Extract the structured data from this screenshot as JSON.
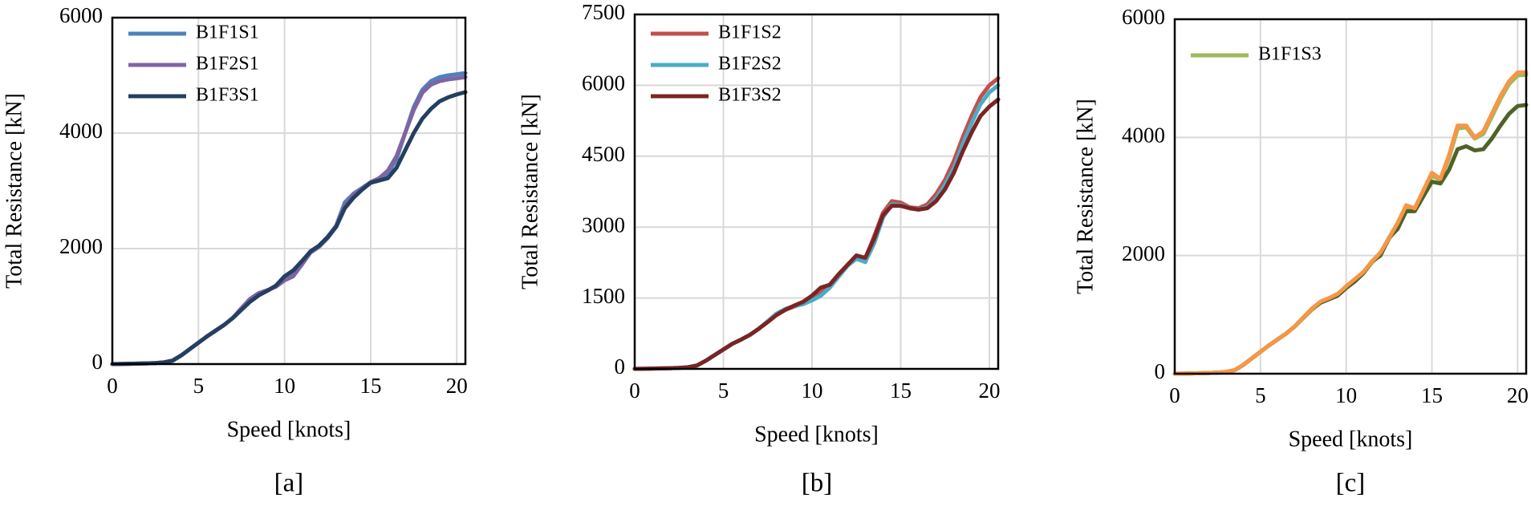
{
  "chart_data": [
    {
      "type": "line",
      "caption": "[a]",
      "x_label": "Speed [knots]",
      "y_label": "Total Resistance [kN]",
      "x": [
        0,
        0.5,
        1,
        1.5,
        2,
        2.5,
        3,
        3.5,
        4,
        4.5,
        5,
        5.5,
        6,
        6.5,
        7,
        7.5,
        8,
        8.5,
        9,
        9.5,
        10,
        10.5,
        11,
        11.5,
        12,
        12.5,
        13,
        13.5,
        14,
        14.5,
        15,
        15.5,
        16,
        16.5,
        17,
        17.5,
        18,
        18.5,
        19,
        19.5,
        20,
        20.5
      ],
      "xlim": [
        0,
        20.5
      ],
      "xticks": [
        0,
        5,
        10,
        15,
        20
      ],
      "ylim": [
        0,
        6000
      ],
      "yticks": [
        0,
        2000,
        4000,
        6000
      ],
      "grid": true,
      "legend": "upper left",
      "series": [
        {
          "name": "B1F1S1",
          "color": "#4f81bd",
          "values": [
            0,
            2,
            5,
            8,
            12,
            18,
            30,
            60,
            150,
            260,
            370,
            480,
            580,
            680,
            800,
            950,
            1100,
            1200,
            1270,
            1350,
            1500,
            1600,
            1750,
            1950,
            2050,
            2200,
            2400,
            2800,
            2950,
            3050,
            3150,
            3200,
            3300,
            3550,
            4000,
            4450,
            4750,
            4900,
            4970,
            5000,
            5020,
            5040
          ]
        },
        {
          "name": "B1F2S1",
          "color": "#8064a2",
          "values": [
            0,
            2,
            5,
            8,
            12,
            18,
            30,
            60,
            150,
            260,
            370,
            480,
            580,
            680,
            800,
            970,
            1130,
            1230,
            1280,
            1340,
            1450,
            1520,
            1720,
            1930,
            2030,
            2180,
            2380,
            2750,
            2930,
            3040,
            3150,
            3220,
            3350,
            3600,
            4000,
            4400,
            4700,
            4840,
            4900,
            4930,
            4950,
            4970
          ]
        },
        {
          "name": "B1F3S1",
          "color": "#243f60",
          "values": [
            0,
            2,
            5,
            8,
            12,
            18,
            30,
            60,
            150,
            260,
            370,
            480,
            580,
            680,
            800,
            940,
            1080,
            1190,
            1270,
            1360,
            1520,
            1620,
            1780,
            1950,
            2050,
            2200,
            2380,
            2700,
            2880,
            3020,
            3140,
            3180,
            3220,
            3400,
            3700,
            4000,
            4250,
            4420,
            4550,
            4620,
            4670,
            4710
          ]
        }
      ]
    },
    {
      "type": "line",
      "caption": "[b]",
      "x_label": "Speed [knots]",
      "y_label": "Total Resistance [kN]",
      "x": [
        0,
        0.5,
        1,
        1.5,
        2,
        2.5,
        3,
        3.5,
        4,
        4.5,
        5,
        5.5,
        6,
        6.5,
        7,
        7.5,
        8,
        8.5,
        9,
        9.5,
        10,
        10.5,
        11,
        11.5,
        12,
        12.5,
        13,
        13.5,
        14,
        14.5,
        15,
        15.5,
        16,
        16.5,
        17,
        17.5,
        18,
        18.5,
        19,
        19.5,
        20,
        20.5
      ],
      "xlim": [
        0,
        20.5
      ],
      "xticks": [
        0,
        5,
        10,
        15,
        20
      ],
      "ylim": [
        0,
        7500
      ],
      "yticks": [
        0,
        1500,
        3000,
        4500,
        6000,
        7500
      ],
      "grid": true,
      "legend": "upper left",
      "series": [
        {
          "name": "B1F1S2",
          "color": "#c0504d",
          "values": [
            0,
            3,
            6,
            10,
            15,
            22,
            35,
            70,
            170,
            290,
            410,
            530,
            620,
            720,
            850,
            1000,
            1150,
            1250,
            1320,
            1380,
            1500,
            1600,
            1780,
            2000,
            2200,
            2380,
            2330,
            2800,
            3300,
            3550,
            3520,
            3420,
            3400,
            3480,
            3700,
            4000,
            4400,
            4900,
            5350,
            5750,
            6000,
            6150
          ]
        },
        {
          "name": "B1F2S2",
          "color": "#4bacc6",
          "values": [
            0,
            3,
            6,
            10,
            15,
            22,
            35,
            70,
            170,
            290,
            410,
            530,
            620,
            720,
            850,
            1010,
            1170,
            1270,
            1330,
            1370,
            1450,
            1550,
            1720,
            1950,
            2180,
            2330,
            2260,
            2650,
            3200,
            3480,
            3470,
            3400,
            3380,
            3420,
            3600,
            3900,
            4250,
            4750,
            5200,
            5600,
            5850,
            6000
          ]
        },
        {
          "name": "B1F3S2",
          "color": "#7b2424",
          "values": [
            0,
            3,
            6,
            10,
            15,
            22,
            35,
            70,
            170,
            290,
            410,
            530,
            620,
            720,
            850,
            990,
            1140,
            1250,
            1340,
            1420,
            1550,
            1720,
            1780,
            2000,
            2200,
            2400,
            2350,
            2750,
            3250,
            3450,
            3450,
            3400,
            3370,
            3400,
            3550,
            3800,
            4150,
            4600,
            5000,
            5350,
            5550,
            5700
          ]
        }
      ]
    },
    {
      "type": "line",
      "caption": "[c]",
      "x_label": "Speed [knots]",
      "y_label": "Total Resistance [kN]",
      "x": [
        0,
        0.5,
        1,
        1.5,
        2,
        2.5,
        3,
        3.5,
        4,
        4.5,
        5,
        5.5,
        6,
        6.5,
        7,
        7.5,
        8,
        8.5,
        9,
        9.5,
        10,
        10.5,
        11,
        11.5,
        12,
        12.5,
        13,
        13.5,
        14,
        14.5,
        15,
        15.5,
        16,
        16.5,
        17,
        17.5,
        18,
        18.5,
        19,
        19.5,
        20,
        20.5
      ],
      "xlim": [
        0,
        20.5
      ],
      "xticks": [
        0,
        5,
        10,
        15,
        20
      ],
      "ylim": [
        0,
        6000
      ],
      "yticks": [
        0,
        2000,
        4000,
        6000
      ],
      "grid": true,
      "legend": "upper left",
      "series": [
        {
          "name": "B1F1S3",
          "color": "#9bbb59",
          "values": [
            0,
            2,
            5,
            8,
            12,
            18,
            30,
            60,
            150,
            260,
            370,
            480,
            580,
            680,
            800,
            940,
            1080,
            1200,
            1270,
            1330,
            1450,
            1570,
            1700,
            1880,
            2020,
            2280,
            2520,
            2800,
            2780,
            3070,
            3350,
            3280,
            3650,
            4150,
            4170,
            3980,
            4060,
            4350,
            4650,
            4900,
            5050,
            5060
          ]
        },
        {
          "color": "#4f6228",
          "values": [
            0,
            2,
            5,
            8,
            12,
            18,
            30,
            60,
            150,
            260,
            370,
            480,
            580,
            680,
            800,
            950,
            1100,
            1200,
            1260,
            1320,
            1450,
            1560,
            1700,
            1900,
            2000,
            2300,
            2450,
            2750,
            2750,
            3000,
            3250,
            3220,
            3450,
            3800,
            3850,
            3780,
            3800,
            3980,
            4200,
            4400,
            4530,
            4550
          ]
        },
        {
          "color": "#f79646",
          "values": [
            0,
            2,
            5,
            8,
            12,
            18,
            30,
            60,
            150,
            260,
            370,
            480,
            580,
            680,
            800,
            950,
            1100,
            1220,
            1280,
            1350,
            1480,
            1600,
            1720,
            1900,
            2050,
            2300,
            2550,
            2850,
            2800,
            3100,
            3400,
            3300,
            3700,
            4200,
            4200,
            4000,
            4100,
            4400,
            4700,
            4950,
            5100,
            5100
          ]
        }
      ]
    }
  ]
}
